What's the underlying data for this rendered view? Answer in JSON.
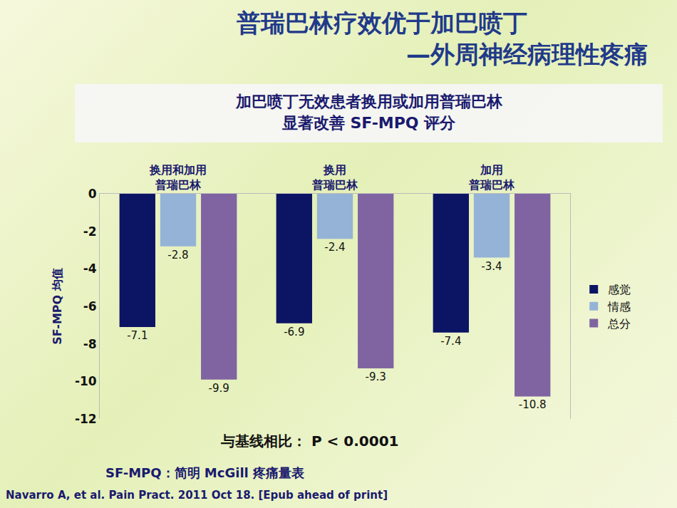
{
  "chart_data": {
    "type": "bar",
    "title": "普瑞巴林疗效优于加巴喷丁\n—外周神经病理性疼痛",
    "subtitle": "加巴喷丁无效患者换用或加用普瑞巴林\n显著改善 SF-MPQ 评分",
    "ylabel": "SF-MPQ 均值",
    "annotations": [
      "与基线相比： P < 0.0001",
      "SF-MPQ：简明 McGill 疼痛量表",
      "Navarro A, et al. Pain Pract. 2011 Oct 18. [Epub ahead of print]"
    ],
    "categories": [
      "换用和加用\n普瑞巴林",
      "换用\n普瑞巴林",
      "加用\n普瑞巴林"
    ],
    "series": [
      {
        "name": "感觉",
        "color": "#0c1464",
        "values": [
          -7.1,
          -6.9,
          -7.4
        ]
      },
      {
        "name": "情感",
        "color": "#95b3d7",
        "values": [
          -2.8,
          -2.4,
          -3.4
        ]
      },
      {
        "name": "总分",
        "color": "#8064a2",
        "values": [
          -9.9,
          -9.3,
          -10.8
        ]
      }
    ],
    "ylim": [
      -12,
      0
    ],
    "yticks": [
      0,
      -2,
      -4,
      -6,
      -8,
      -10,
      -12
    ],
    "grid": false,
    "legend": "right",
    "data_labels": true
  }
}
